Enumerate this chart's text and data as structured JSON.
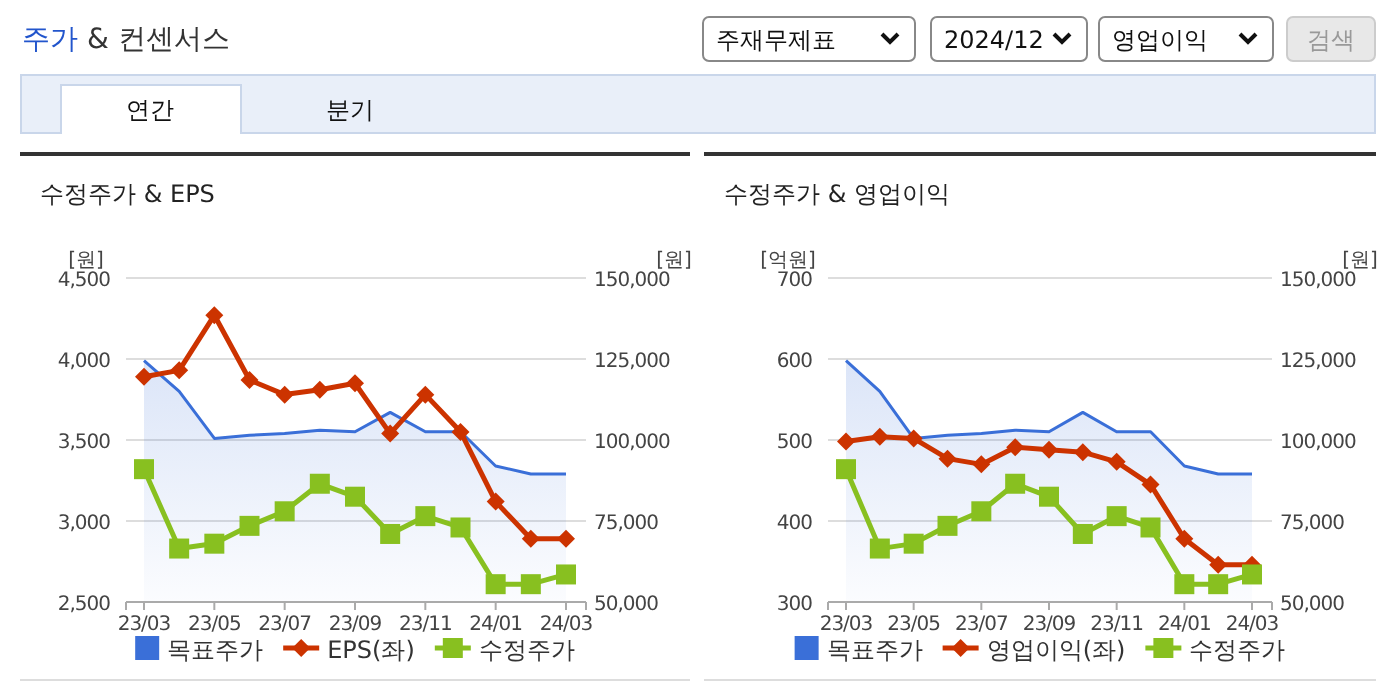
{
  "chart_data": [
    {
      "type": "other",
      "title": "주가 & 컨센서스",
      "annotations": [
        "주재무제표",
        "2024/12",
        "영업이익",
        "검색",
        "연간",
        "분기"
      ]
    },
    {
      "type": "line",
      "title": "수정주가 & EPS",
      "ylabel": "[원]",
      "y2label": "[원]",
      "categories": [
        "23/03",
        null,
        "23/05",
        null,
        "23/07",
        null,
        "23/09",
        null,
        "23/11",
        null,
        "24/01",
        null,
        "24/03"
      ],
      "ylim": [
        2500,
        4500
      ],
      "yticks": [
        {
          "value": 2500,
          "label": "2,500"
        },
        {
          "value": 3000,
          "label": "3,000"
        },
        {
          "value": 3500,
          "label": "3,500"
        },
        {
          "value": 4000,
          "label": "4,000"
        },
        {
          "value": 4500,
          "label": "4,500"
        }
      ],
      "y2lim": [
        50000,
        150000
      ],
      "y2ticks": [
        {
          "value": 50000,
          "label": "50,000"
        },
        {
          "value": 75000,
          "label": "75,000"
        },
        {
          "value": 100000,
          "label": "100,000"
        },
        {
          "value": 125000,
          "label": "125,000"
        },
        {
          "value": 150000,
          "label": "150,000"
        }
      ],
      "grid": "y",
      "legend": "bottom",
      "series": [
        {
          "name": "목표주가",
          "type": "area",
          "axis": "y2",
          "color": "#3a6fd8",
          "values": [
            124500,
            115000,
            100500,
            101500,
            102000,
            103000,
            102500,
            108500,
            102500,
            102500,
            92000,
            89500,
            89500
          ]
        },
        {
          "name": "EPS(좌)",
          "type": "line",
          "color": "#cc3300",
          "marker": "diamond",
          "values": [
            3890,
            3930,
            4270,
            3870,
            3780,
            3810,
            3850,
            3540,
            3780,
            3550,
            3120,
            2890,
            2890
          ]
        },
        {
          "name": "수정주가",
          "type": "line",
          "axis": "y2",
          "color": "#88c020",
          "marker": "square",
          "values": [
            91000,
            66500,
            68000,
            73500,
            78000,
            86500,
            82500,
            71000,
            76500,
            73000,
            55500,
            55500,
            58500
          ]
        }
      ]
    },
    {
      "type": "line",
      "title": "수정주가 & 영업이익",
      "ylabel": "[억원]",
      "y2label": "[원]",
      "categories": [
        "23/03",
        null,
        "23/05",
        null,
        "23/07",
        null,
        "23/09",
        null,
        "23/11",
        null,
        "24/01",
        null,
        "24/03"
      ],
      "ylim": [
        300,
        700
      ],
      "yticks": [
        300,
        400,
        500,
        600,
        700
      ],
      "y2lim": [
        50000,
        150000
      ],
      "y2ticks": [
        {
          "value": 50000,
          "label": "50,000"
        },
        {
          "value": 75000,
          "label": "75,000"
        },
        {
          "value": 100000,
          "label": "100,000"
        },
        {
          "value": 125000,
          "label": "125,000"
        },
        {
          "value": 150000,
          "label": "150,000"
        }
      ],
      "grid": "y",
      "legend": "bottom",
      "series": [
        {
          "name": "목표주가",
          "type": "area",
          "axis": "y2",
          "color": "#3a6fd8",
          "values": [
            124500,
            115000,
            100500,
            101500,
            102000,
            103000,
            102500,
            108500,
            102500,
            102500,
            92000,
            89500,
            89500
          ]
        },
        {
          "name": "영업이익(좌)",
          "type": "line",
          "color": "#cc3300",
          "marker": "diamond",
          "values": [
            498,
            504,
            502,
            477,
            470,
            491,
            488,
            485,
            473,
            445,
            378,
            346,
            346
          ]
        },
        {
          "name": "수정주가",
          "type": "line",
          "axis": "y2",
          "color": "#88c020",
          "marker": "square",
          "values": [
            91000,
            66500,
            68000,
            73500,
            78000,
            86500,
            82500,
            71000,
            76500,
            73000,
            55500,
            55500,
            58500
          ]
        }
      ]
    }
  ]
}
